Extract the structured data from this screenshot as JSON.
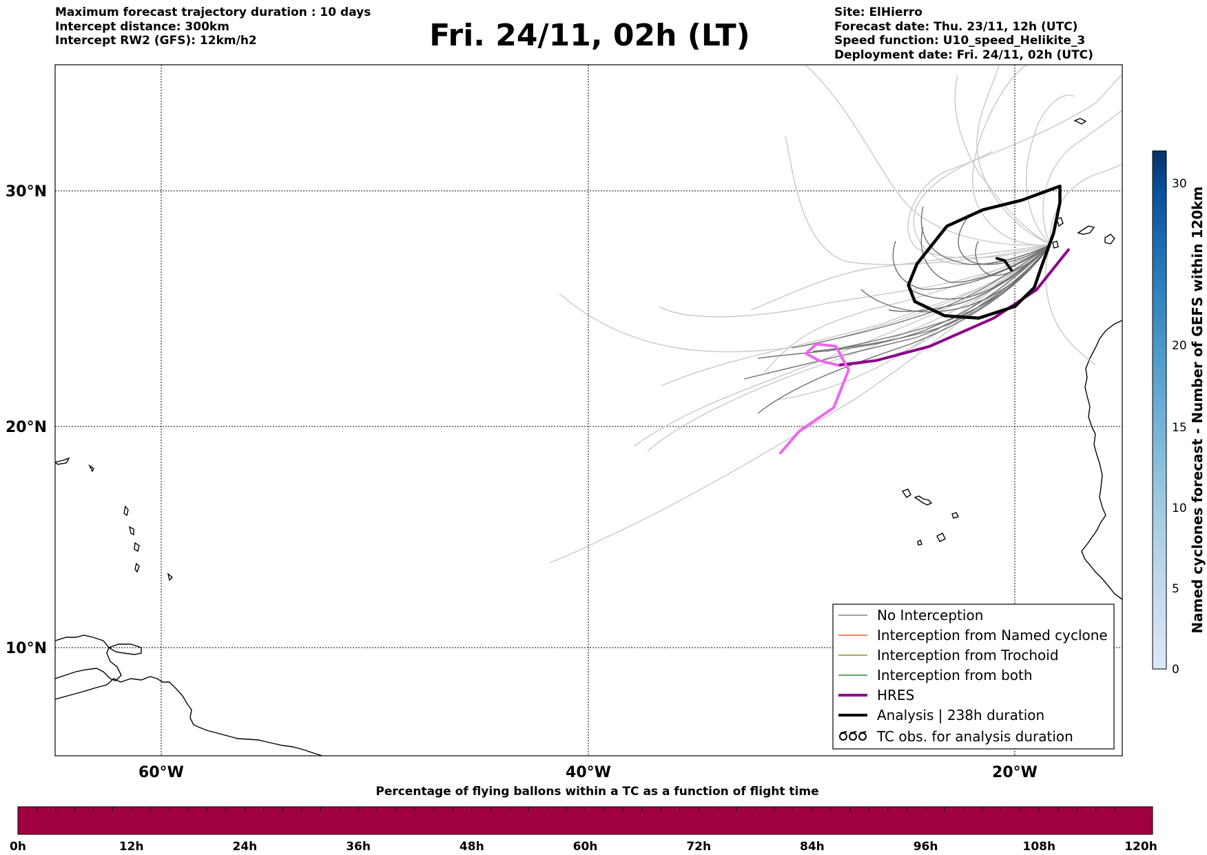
{
  "header": {
    "left_lines": [
      "Maximum forecast trajectory duration : 10 days",
      "Intercept distance: 300km",
      "Intercept RW2 (GFS):  12km/h2"
    ],
    "title": "Fri. 24/11, 02h (LT)",
    "right_lines": [
      "Site: ElHierro",
      "Forecast date: Thu. 23/11, 12h (UTC)",
      "Speed function: U10_speed_Helikite_3",
      "Deployment date: Fri. 24/11, 02h (UTC)"
    ]
  },
  "map": {
    "lat_labels": [
      "30°N",
      "20°N",
      "10°N"
    ],
    "lon_labels": [
      "60°W",
      "40°W",
      "20°W"
    ],
    "extent": {
      "lon_min": -65,
      "lon_max": -15,
      "lat_min": 5.4,
      "lat_max": 35.3
    }
  },
  "legend": {
    "items": [
      {
        "label": "No Interception",
        "color": "#808080",
        "style": "thin"
      },
      {
        "label": "Interception from Named cyclone",
        "color": "#ff5a1f",
        "style": "thin"
      },
      {
        "label": "Interception from Trochoid",
        "color": "#8a8a2a",
        "style": "thin"
      },
      {
        "label": "Interception from both",
        "color": "#2e8b2e",
        "style": "thin"
      },
      {
        "label": "HRES",
        "color": "#8b008b",
        "style": "thick"
      },
      {
        "label": "Analysis | 238h duration",
        "color": "#000000",
        "style": "thick"
      },
      {
        "label": "TC obs. for analysis duration",
        "color": "#000000",
        "style": "marker"
      }
    ]
  },
  "colorbar_right": {
    "label": "Named cyclones forecast - Number of GEFS within 120km",
    "ticks": [
      "0",
      "5",
      "10",
      "15",
      "20",
      "30"
    ],
    "colors": [
      "#dbe9f6",
      "#c4daee",
      "#9ecae1",
      "#6baed6",
      "#4292c6",
      "#2171b5",
      "#08519c",
      "#08306b"
    ]
  },
  "colorbar_bottom": {
    "title": "Percentage of flying ballons within a TC as a function of flight time",
    "ticks": [
      "0h",
      "12h",
      "24h",
      "36h",
      "48h",
      "60h",
      "72h",
      "84h",
      "96h",
      "108h",
      "120h"
    ],
    "color": "#a0003f"
  },
  "chart_data": {
    "type": "line",
    "title": "Fri. 24/11, 02h (LT)",
    "series": [
      {
        "name": "HRES",
        "color": "#8b008b",
        "points": [
          [
            -17.5,
            27.5
          ],
          [
            -19,
            25.8
          ],
          [
            -21,
            24.6
          ],
          [
            -24,
            23.4
          ],
          [
            -26.5,
            22.8
          ],
          [
            -28.3,
            22.6
          ]
        ]
      },
      {
        "name": "HRES",
        "color": "#ee66ee",
        "points": [
          [
            -28.3,
            22.6
          ],
          [
            -29.2,
            22.8
          ],
          [
            -29.8,
            23.1
          ],
          [
            -29.3,
            23.5
          ],
          [
            -28.4,
            23.4
          ],
          [
            -27.8,
            22.4
          ],
          [
            -28.5,
            20.8
          ],
          [
            -30.1,
            19.8
          ],
          [
            -31,
            18.8
          ]
        ]
      },
      {
        "name": "Analysis | 238h duration",
        "color": "#000000",
        "points": [
          [
            -17.9,
            30.2
          ],
          [
            -18.2,
            30.1
          ],
          [
            -19.7,
            29.6
          ],
          [
            -21.5,
            29.2
          ],
          [
            -23.2,
            28.5
          ],
          [
            -24.6,
            26.9
          ],
          [
            -25,
            26
          ],
          [
            -24.7,
            25.3
          ],
          [
            -23.3,
            24.7
          ],
          [
            -21.7,
            24.6
          ],
          [
            -20,
            25.1
          ],
          [
            -19.1,
            25.9
          ],
          [
            -18.8,
            26.7
          ],
          [
            -18.2,
            28.2
          ],
          [
            -17.9,
            29.5
          ],
          [
            -17.9,
            30.2
          ]
        ]
      }
    ],
    "ensemble_series": "No Interception"
  }
}
